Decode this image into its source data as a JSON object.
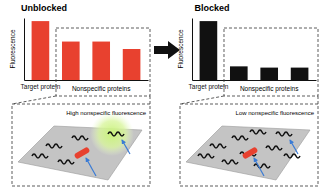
{
  "chart_data": [
    {
      "type": "bar",
      "title": "Unblocked",
      "y_label": "Fluorescence",
      "categories": [
        "Target protein",
        null,
        null,
        null
      ],
      "values": [
        95,
        62,
        62,
        50
      ],
      "color": "#e8412f",
      "ylim": [
        0,
        100
      ],
      "tick_labels": "x",
      "annotations": [
        "Nonspecific proteins",
        "High nonspecific fluorescence"
      ]
    },
    {
      "type": "bar",
      "title": "Blocked",
      "y_label": "Fluorescence",
      "categories": [
        "Target protein",
        null,
        null,
        null
      ],
      "values": [
        95,
        22,
        20,
        20
      ],
      "color": "#111111",
      "ylim": [
        0,
        100
      ],
      "tick_labels": "x",
      "annotations": [
        "Nonspecific proteins",
        "Low nonspecific fluorescence"
      ]
    }
  ]
}
